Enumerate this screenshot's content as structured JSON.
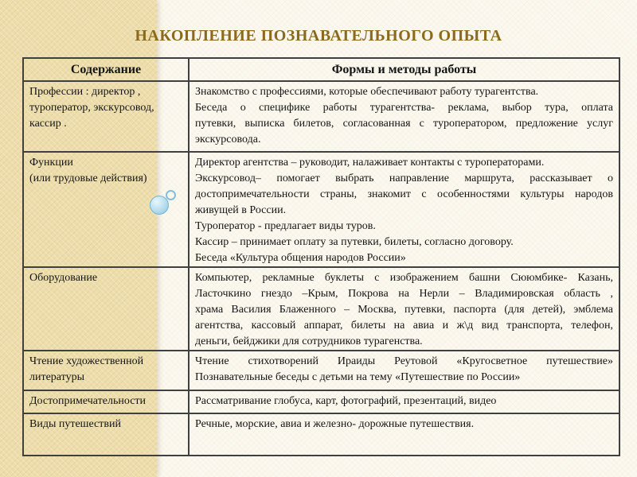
{
  "title": "НАКОПЛЕНИЕ ПОЗНАВАТЕЛЬНОГО ОПЫТА",
  "colors": {
    "title_text": "#8b6a1d",
    "left_strip": "#ecddab",
    "slide_background": "#fbf8ef",
    "table_border": "#404040",
    "body_text": "#141414",
    "bubble_blue": "#8ec6e0"
  },
  "icons": {
    "bubble_large": "decorative light-blue bubble circle",
    "bubble_small": "decorative light-blue ring"
  },
  "table": {
    "col_headers": [
      "Содержание",
      "Формы и методы работы"
    ],
    "rows": [
      {
        "content": [
          "Профессии : директор ,",
          "туроператор, экскурсовод,",
          "кассир ."
        ],
        "methods": [
          [
            "Знакомство с профессиями, которые обеспечивают работу турагентства."
          ],
          [
            "Беседа о специфике работы турагентства- реклама, выбор тура, оплата",
            "путевки, выписка билетов, согласованная с туроператором, предложение услуг",
            "экскурсовода."
          ]
        ]
      },
      {
        "content": [
          "Функции",
          "(или трудовые действия)"
        ],
        "methods": [
          [
            "Директор агентства – руководит, налаживает контакты с туроператорами."
          ],
          [
            "Экскурсовод– помогает выбрать направление маршрута, рассказывает о",
            "достопримечательности страны, знакомит с особенностями культуры народов",
            "живущей в России."
          ],
          [
            "Туроператор - предлагает виды туров."
          ],
          [
            "Кассир – принимает оплату за путевки, билеты, согласно договору."
          ],
          [
            "Беседа «Культура общения  народов России»"
          ]
        ]
      },
      {
        "content": [
          "Оборудование"
        ],
        "methods": [
          [
            "Компьютер, рекламные буклеты с изображением  башни Сююмбике- Казань,",
            "Ласточкино гнездо –Крым, Покрова на Нерли – Владимировская область ,",
            "храма Василия  Блаженного – Москва, путевки, паспорта (для детей), эмблема",
            "агентства, кассовый аппарат, билеты на авиа и ж\\д  вид транспорта, телефон,",
            "деньги, бейджики  для сотрудников турагенства."
          ]
        ]
      },
      {
        "content": [
          "Чтение художественной",
          "литературы"
        ],
        "methods": [
          [
            "Чтение стихотворений Ираиды Реутовой «Кругосветное путешествие»",
            "Познавательные беседы с детьми на тему «Путешествие по России»"
          ]
        ]
      },
      {
        "content": [
          "Достопримечательности"
        ],
        "methods": [
          [
            "Рассматривание глобуса, карт, фотографий, презентаций, видео"
          ]
        ]
      },
      {
        "content": [
          "Виды путешествий"
        ],
        "methods": [
          [
            "Речные, морские, авиа и железно- дорожные путешествия."
          ]
        ]
      }
    ]
  }
}
